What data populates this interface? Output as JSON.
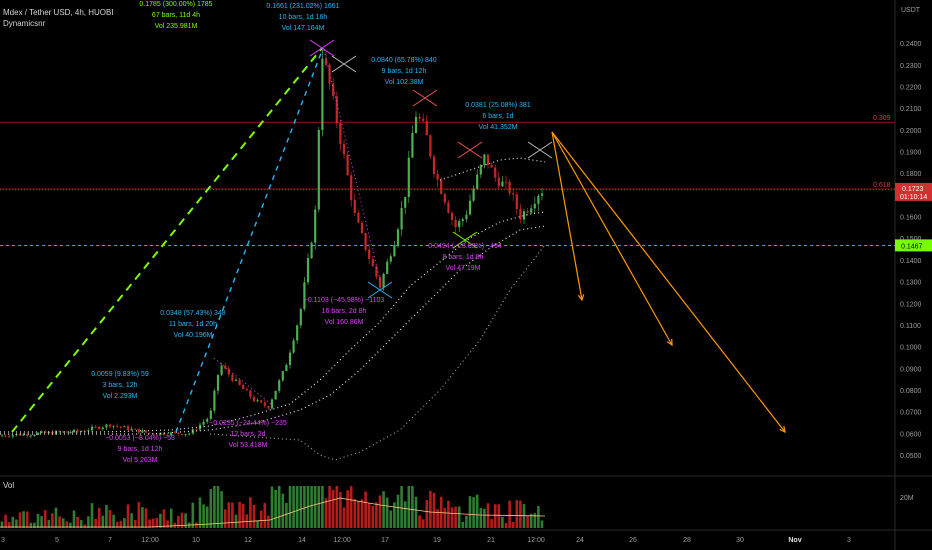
{
  "header": {
    "title": "Mdex / Tether USD, 4h, HUOBI",
    "indicator": "Dynamicsnr"
  },
  "volume_pane": {
    "label": "Vol",
    "scale_label": "20M"
  },
  "colors": {
    "background": "#000000",
    "up": "#26a69a",
    "down": "#ef5350",
    "green_trend": "#7cfc00",
    "cyan_trend": "#29b6f6",
    "magenta": "#e040fb",
    "orange": "#ff9800",
    "fib_line": "#b71c1c",
    "price_line": "#ef5350",
    "support_line": "#76ff03"
  },
  "chart_data": {
    "type": "candlestick",
    "currency": "USDT",
    "y_ticks": [
      "0.2400",
      "0.2300",
      "0.2200",
      "0.2100",
      "0.2000",
      "0.1900",
      "0.1800",
      "0.1700",
      "0.1600",
      "0.1500",
      "0.1400",
      "0.1300",
      "0.1200",
      "0.1100",
      "0.1000",
      "0.0900",
      "0.0800",
      "0.0700",
      "0.0600",
      "0.0500"
    ],
    "ylim": [
      0.046,
      0.249
    ],
    "x_ticks": [
      "3",
      "5",
      "7",
      "12:00",
      "10",
      "12",
      "14",
      "12:00",
      "17",
      "19",
      "21",
      "12:00",
      "24",
      "26",
      "28",
      "30",
      "Nov",
      "3"
    ],
    "last_price": {
      "label": "0.1723",
      "sub": "01:10:14",
      "value": 0.1723
    },
    "support_level": {
      "label": "0.1467",
      "value": 0.1467
    },
    "fib_levels": [
      {
        "label": "0.309",
        "value": 0.2035
      },
      {
        "label": "0.618",
        "value": 0.1727
      }
    ],
    "measurements": [
      {
        "lines": [
          "0.1785 (300.00%) 1785",
          "67 bars, 11d 4h",
          "Vol 235.981M"
        ],
        "color": "#7cfc00"
      },
      {
        "lines": [
          "0.1661 (231.02%) 1661",
          "10 bars, 1d 16h",
          "Vol 147.164M"
        ],
        "color": "#29b6f6"
      },
      {
        "lines": [
          "0.0840 (65.78%) 840",
          "9 bars, 1d 12h",
          "Vol 102.38M"
        ],
        "color": "#29b6f6"
      },
      {
        "lines": [
          "0.0381 (25.08%) 381",
          "6 bars, 1d",
          "Vol 41.352M"
        ],
        "color": "#29b6f6"
      },
      {
        "lines": [
          "0.0348 (57.43%) 348",
          "11 bars, 1d 20h",
          "Vol 40.196M"
        ],
        "color": "#29b6f6"
      },
      {
        "lines": [
          "0.0059 (9.83%) 59",
          "3 bars, 12h",
          "Vol 2.293M"
        ],
        "color": "#29b6f6"
      },
      {
        "lines": [
          "−0.0053 (−8.04%) −53",
          "9 bars, 1d 12h",
          "Vol 5.263M"
        ],
        "color": "#e040fb"
      },
      {
        "lines": [
          "−0.0235 (−24.44%) −235",
          "12 bars, 2d",
          "Vol 53.418M"
        ],
        "color": "#e040fb"
      },
      {
        "lines": [
          "−0.1103 (−45.98%) −1103",
          "16 bars, 2d 8h",
          "Vol 160.86M"
        ],
        "color": "#e040fb"
      },
      {
        "lines": [
          "−0.0494 (−23.03%) −494",
          "8 bars, 1d 8h",
          "Vol 47.19M"
        ],
        "color": "#e040fb"
      }
    ],
    "projection_targets": [
      0.135,
      0.102,
      0.061
    ],
    "grid": false,
    "legend": "none"
  }
}
